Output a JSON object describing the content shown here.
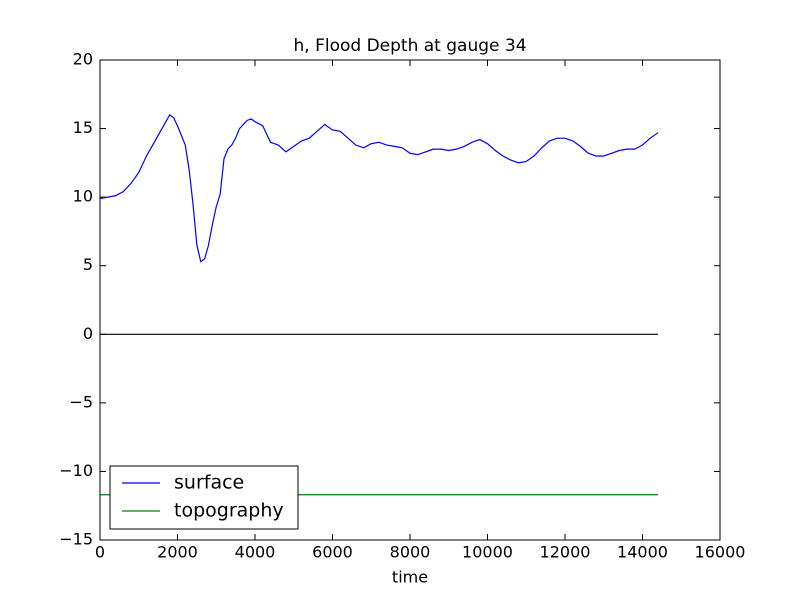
{
  "chart_data": {
    "type": "line",
    "title": "h, Flood Depth at gauge 34",
    "x_label": "time",
    "x": [
      0,
      200,
      400,
      600,
      800,
      1000,
      1200,
      1400,
      1600,
      1800,
      1900,
      2000,
      2200,
      2300,
      2400,
      2500,
      2600,
      2700,
      2800,
      2900,
      3000,
      3100,
      3200,
      3300,
      3400,
      3500,
      3600,
      3800,
      3900,
      4000,
      4200,
      4400,
      4600,
      4800,
      5000,
      5200,
      5400,
      5600,
      5800,
      6000,
      6200,
      6400,
      6600,
      6800,
      7000,
      7200,
      7400,
      7600,
      7800,
      8000,
      8200,
      8400,
      8600,
      8800,
      9000,
      9200,
      9400,
      9600,
      9800,
      10000,
      10200,
      10400,
      10600,
      10800,
      11000,
      11200,
      11400,
      11600,
      11800,
      12000,
      12200,
      12400,
      12600,
      12800,
      13000,
      13200,
      13400,
      13600,
      13800,
      14000,
      14200,
      14400
    ],
    "series": [
      {
        "name": "surface",
        "color": "#0000ff",
        "values": [
          9.9,
          10.0,
          10.1,
          10.4,
          11.0,
          11.8,
          13.0,
          14.0,
          15.0,
          16.0,
          15.8,
          15.2,
          13.8,
          12.0,
          9.5,
          6.5,
          5.3,
          5.5,
          6.5,
          8.0,
          9.3,
          10.2,
          12.8,
          13.5,
          13.8,
          14.3,
          15.0,
          15.6,
          15.7,
          15.5,
          15.2,
          14.0,
          13.8,
          13.3,
          13.7,
          14.1,
          14.3,
          14.8,
          15.3,
          14.9,
          14.8,
          14.3,
          13.8,
          13.6,
          13.9,
          14.0,
          13.8,
          13.7,
          13.6,
          13.2,
          13.1,
          13.3,
          13.5,
          13.5,
          13.4,
          13.5,
          13.7,
          14.0,
          14.2,
          13.9,
          13.4,
          13.0,
          12.7,
          12.5,
          12.6,
          13.0,
          13.6,
          14.1,
          14.3,
          14.3,
          14.1,
          13.7,
          13.2,
          13.0,
          13.0,
          13.2,
          13.4,
          13.5,
          13.5,
          13.8,
          14.3,
          14.7
        ]
      },
      {
        "name": "topography",
        "color": "#008000",
        "values": [
          -11.7,
          -11.7,
          -11.7,
          -11.7,
          -11.7,
          -11.7,
          -11.7,
          -11.7,
          -11.7,
          -11.7,
          -11.7,
          -11.7,
          -11.7,
          -11.7,
          -11.7,
          -11.7,
          -11.7,
          -11.7,
          -11.7,
          -11.7,
          -11.7,
          -11.7,
          -11.7,
          -11.7,
          -11.7,
          -11.7,
          -11.7,
          -11.7,
          -11.7,
          -11.7,
          -11.7,
          -11.7,
          -11.7,
          -11.7,
          -11.7,
          -11.7,
          -11.7,
          -11.7,
          -11.7,
          -11.7,
          -11.7,
          -11.7,
          -11.7,
          -11.7,
          -11.7,
          -11.7,
          -11.7,
          -11.7,
          -11.7,
          -11.7,
          -11.7,
          -11.7,
          -11.7,
          -11.7,
          -11.7,
          -11.7,
          -11.7,
          -11.7,
          -11.7,
          -11.7,
          -11.7,
          -11.7,
          -11.7,
          -11.7,
          -11.7,
          -11.7,
          -11.7,
          -11.7,
          -11.7,
          -11.7,
          -11.7,
          -11.7,
          -11.7,
          -11.7,
          -11.7,
          -11.7,
          -11.7,
          -11.7,
          -11.7,
          -11.7,
          -11.7,
          -11.7
        ]
      }
    ],
    "reference_line": {
      "color": "#000000",
      "x": [
        0,
        14400
      ],
      "values": [
        0,
        0
      ]
    },
    "xlim": [
      0,
      16000
    ],
    "xticks": [
      0,
      2000,
      4000,
      6000,
      8000,
      10000,
      12000,
      14000,
      16000
    ],
    "ylim": [
      -15,
      20
    ],
    "yticks": [
      {
        "value": -15,
        "label": "−15"
      },
      {
        "value": -10,
        "label": "−10"
      },
      {
        "value": -5,
        "label": "−5"
      },
      0,
      5,
      10,
      15,
      20
    ],
    "legend": "lower left",
    "grid": false
  }
}
